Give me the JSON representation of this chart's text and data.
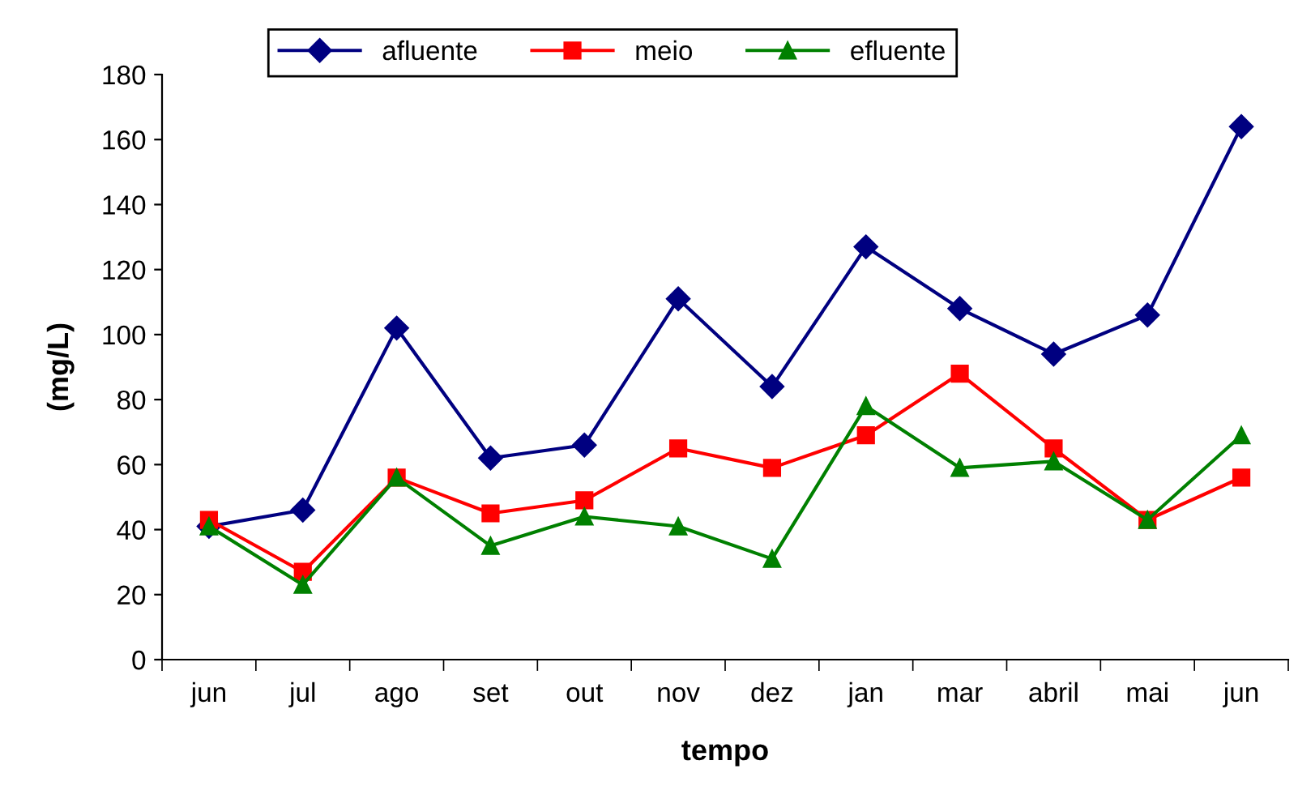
{
  "chart_data": {
    "type": "line",
    "xlabel": "tempo",
    "ylabel": "(mg/L)",
    "categories": [
      "jun",
      "jul",
      "ago",
      "set",
      "out",
      "nov",
      "dez",
      "jan",
      "mar",
      "abril",
      "mai",
      "jun"
    ],
    "series": [
      {
        "name": "afluente",
        "color": "#000080",
        "marker": "diamond",
        "values": [
          41,
          46,
          102,
          62,
          66,
          111,
          84,
          127,
          108,
          94,
          106,
          164
        ]
      },
      {
        "name": "meio",
        "color": "#ff0000",
        "marker": "square",
        "values": [
          43,
          27,
          56,
          45,
          49,
          65,
          59,
          69,
          88,
          65,
          43,
          56
        ]
      },
      {
        "name": "efluente",
        "color": "#008000",
        "marker": "triangle",
        "values": [
          41,
          23,
          56,
          35,
          44,
          41,
          31,
          78,
          59,
          61,
          43,
          69
        ]
      }
    ],
    "ylim": [
      0,
      180
    ],
    "yticks": [
      0,
      20,
      40,
      60,
      80,
      100,
      120,
      140,
      160,
      180
    ],
    "grid": false,
    "legend": "top",
    "line_style": "solid"
  }
}
